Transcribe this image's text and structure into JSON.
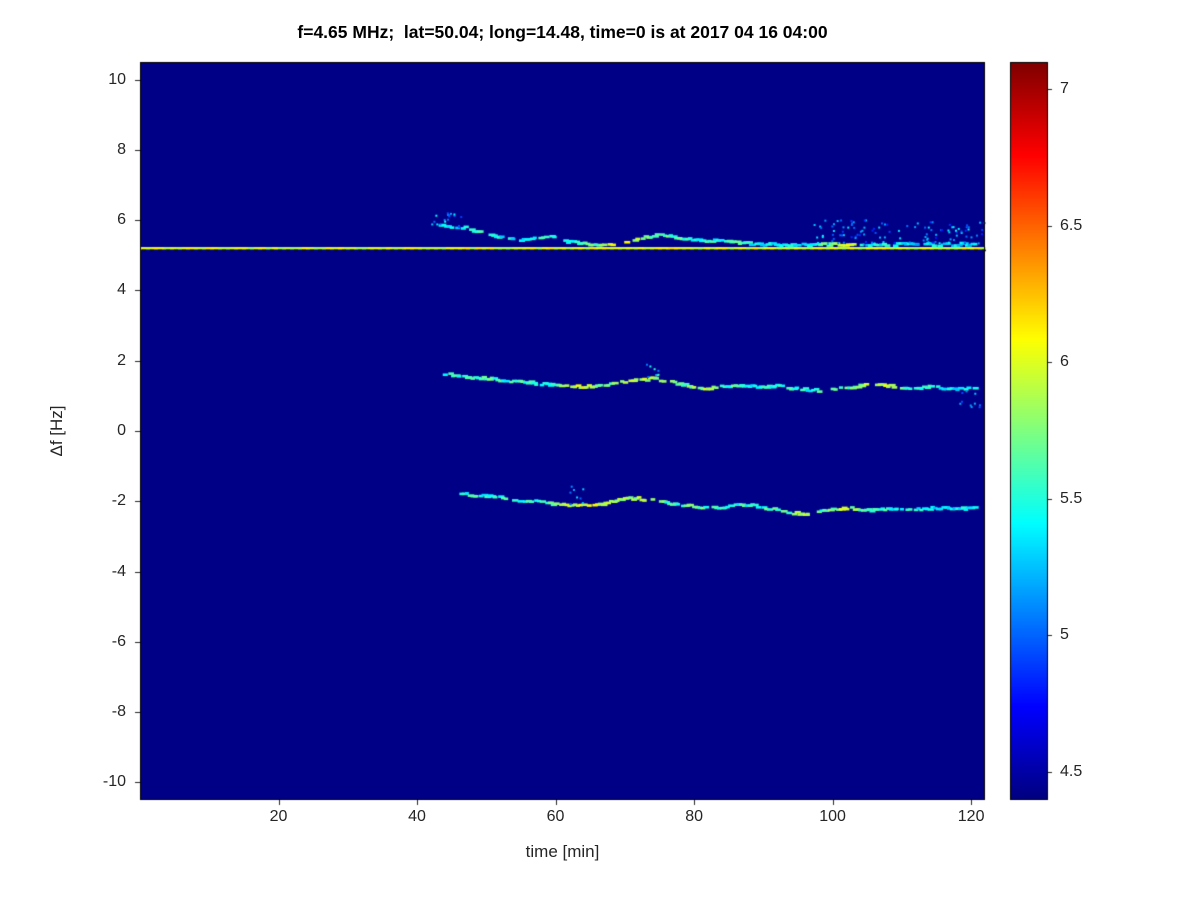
{
  "chart_data": {
    "type": "heatmap",
    "title": "f=4.65 MHz;  lat=50.04; long=14.48, time=0 is at 2017 04 16 04:00",
    "xlabel": "time [min]",
    "ylabel": "Δf [Hz]",
    "xlim": [
      0,
      122
    ],
    "ylim": [
      -10.5,
      10.5
    ],
    "x_ticks": [
      20,
      40,
      60,
      80,
      100,
      120
    ],
    "y_ticks": [
      -10,
      -8,
      -6,
      -4,
      -2,
      0,
      2,
      4,
      6,
      8,
      10
    ],
    "grid": false,
    "colormap": "jet",
    "legend": "none",
    "colorbar": {
      "min": 4.4,
      "max": 7.1,
      "ticks": [
        4.5,
        5,
        5.5,
        6,
        6.5,
        7
      ],
      "position": "right"
    },
    "background_value": 4.42,
    "axis_color": "#262626",
    "box_color": "#000000",
    "carrier_line": {
      "y": 5.2,
      "value": 6.0,
      "style": "dashed",
      "x_start": 0,
      "x_end": 122
    },
    "traces": [
      {
        "name": "upper-sideband-trace",
        "points": [
          [
            43,
            5.88,
            5.5
          ],
          [
            45,
            5.8,
            5.4
          ],
          [
            47,
            5.78,
            5.4
          ],
          [
            49,
            5.65,
            5.5
          ],
          [
            51,
            5.55,
            5.4
          ],
          [
            53,
            5.47,
            5.4
          ],
          [
            55,
            5.42,
            5.4
          ],
          [
            57,
            5.5,
            5.5
          ],
          [
            59,
            5.55,
            5.5
          ],
          [
            61,
            5.42,
            5.4
          ],
          [
            63,
            5.35,
            5.5
          ],
          [
            65,
            5.3,
            5.6
          ],
          [
            67,
            5.27,
            5.8
          ],
          [
            69,
            5.3,
            6.1
          ],
          [
            71,
            5.38,
            5.9
          ],
          [
            73,
            5.52,
            5.7
          ],
          [
            75,
            5.58,
            5.7
          ],
          [
            77,
            5.52,
            5.6
          ],
          [
            79,
            5.48,
            5.5
          ],
          [
            81,
            5.42,
            5.5
          ],
          [
            83,
            5.42,
            5.5
          ],
          [
            85,
            5.42,
            5.6
          ],
          [
            87,
            5.35,
            5.5
          ],
          [
            89,
            5.3,
            5.4
          ],
          [
            91,
            5.32,
            5.4
          ],
          [
            93,
            5.28,
            5.4
          ],
          [
            95,
            5.32,
            5.5
          ],
          [
            97,
            5.3,
            5.4
          ],
          [
            99,
            5.3,
            5.7
          ],
          [
            101,
            5.3,
            6.0
          ],
          [
            103,
            5.3,
            5.9
          ],
          [
            105,
            5.3,
            5.4
          ],
          [
            107,
            5.3,
            5.4
          ],
          [
            109,
            5.3,
            5.4
          ],
          [
            111,
            5.32,
            5.3
          ],
          [
            113,
            5.3,
            5.3
          ],
          [
            115,
            5.3,
            5.4
          ],
          [
            117,
            5.3,
            5.3
          ],
          [
            119,
            5.32,
            5.3
          ],
          [
            121,
            5.3,
            5.3
          ]
        ]
      },
      {
        "name": "middle-trace",
        "points": [
          [
            44,
            1.62,
            5.4
          ],
          [
            46,
            1.58,
            5.5
          ],
          [
            48,
            1.52,
            5.5
          ],
          [
            50,
            1.5,
            5.6
          ],
          [
            52,
            1.45,
            5.5
          ],
          [
            54,
            1.42,
            5.6
          ],
          [
            56,
            1.38,
            5.5
          ],
          [
            58,
            1.33,
            5.5
          ],
          [
            60,
            1.3,
            5.6
          ],
          [
            62,
            1.27,
            5.8
          ],
          [
            64,
            1.25,
            6.0
          ],
          [
            66,
            1.28,
            5.8
          ],
          [
            68,
            1.35,
            5.7
          ],
          [
            70,
            1.4,
            5.8
          ],
          [
            72,
            1.45,
            5.9
          ],
          [
            74,
            1.48,
            5.8
          ],
          [
            76,
            1.42,
            5.7
          ],
          [
            78,
            1.33,
            5.6
          ],
          [
            80,
            1.25,
            5.8
          ],
          [
            82,
            1.2,
            5.9
          ],
          [
            84,
            1.25,
            5.6
          ],
          [
            86,
            1.3,
            5.6
          ],
          [
            88,
            1.28,
            5.5
          ],
          [
            90,
            1.25,
            5.5
          ],
          [
            92,
            1.28,
            5.5
          ],
          [
            94,
            1.22,
            5.5
          ],
          [
            96,
            1.18,
            5.5
          ],
          [
            98,
            1.15,
            5.5
          ],
          [
            100,
            1.18,
            5.6
          ],
          [
            102,
            1.22,
            5.6
          ],
          [
            104,
            1.28,
            5.8
          ],
          [
            106,
            1.32,
            6.0
          ],
          [
            108,
            1.28,
            5.9
          ],
          [
            110,
            1.24,
            5.6
          ],
          [
            112,
            1.22,
            5.5
          ],
          [
            114,
            1.25,
            5.5
          ],
          [
            116,
            1.22,
            5.4
          ],
          [
            118,
            1.2,
            5.4
          ],
          [
            120,
            1.22,
            5.4
          ],
          [
            121,
            1.2,
            5.4
          ]
        ]
      },
      {
        "name": "lower-trace",
        "points": [
          [
            46,
            -1.78,
            5.4
          ],
          [
            48,
            -1.82,
            5.5
          ],
          [
            50,
            -1.86,
            5.5
          ],
          [
            52,
            -1.9,
            5.6
          ],
          [
            54,
            -1.95,
            5.6
          ],
          [
            56,
            -2.0,
            5.5
          ],
          [
            58,
            -2.02,
            5.6
          ],
          [
            60,
            -2.08,
            5.7
          ],
          [
            62,
            -2.12,
            5.9
          ],
          [
            64,
            -2.12,
            6.05
          ],
          [
            66,
            -2.1,
            6.0
          ],
          [
            68,
            -2.02,
            5.8
          ],
          [
            70,
            -1.92,
            5.9
          ],
          [
            72,
            -1.92,
            5.8
          ],
          [
            74,
            -1.98,
            5.7
          ],
          [
            76,
            -2.05,
            5.6
          ],
          [
            78,
            -2.1,
            5.6
          ],
          [
            80,
            -2.15,
            5.7
          ],
          [
            82,
            -2.18,
            5.6
          ],
          [
            84,
            -2.18,
            5.6
          ],
          [
            86,
            -2.12,
            5.5
          ],
          [
            88,
            -2.1,
            5.5
          ],
          [
            90,
            -2.18,
            5.6
          ],
          [
            92,
            -2.25,
            5.6
          ],
          [
            94,
            -2.32,
            5.7
          ],
          [
            96,
            -2.38,
            5.8
          ],
          [
            98,
            -2.3,
            5.6
          ],
          [
            100,
            -2.24,
            5.8
          ],
          [
            102,
            -2.2,
            6.0
          ],
          [
            104,
            -2.22,
            5.6
          ],
          [
            106,
            -2.26,
            5.5
          ],
          [
            108,
            -2.22,
            5.5
          ],
          [
            110,
            -2.2,
            5.5
          ],
          [
            112,
            -2.24,
            5.4
          ],
          [
            114,
            -2.2,
            5.4
          ],
          [
            116,
            -2.2,
            5.4
          ],
          [
            118,
            -2.22,
            5.4
          ],
          [
            120,
            -2.2,
            5.4
          ],
          [
            121,
            -2.2,
            5.4
          ]
        ]
      }
    ],
    "speckle_regions": [
      {
        "t": [
          97,
          122
        ],
        "f": [
          5.3,
          6.0
        ],
        "count": 110,
        "value": [
          4.8,
          5.45
        ]
      },
      {
        "t": [
          42,
          47
        ],
        "f": [
          5.8,
          6.2
        ],
        "count": 18,
        "value": [
          4.9,
          5.5
        ]
      },
      {
        "t": [
          118,
          122
        ],
        "f": [
          0.6,
          1.15
        ],
        "count": 10,
        "value": [
          4.9,
          5.3
        ]
      },
      {
        "t": [
          73,
          75
        ],
        "f": [
          1.5,
          1.9
        ],
        "count": 8,
        "value": [
          5.0,
          5.6
        ]
      },
      {
        "t": [
          62,
          64
        ],
        "f": [
          -2.1,
          -1.5
        ],
        "count": 8,
        "value": [
          5.0,
          5.5
        ]
      }
    ]
  }
}
